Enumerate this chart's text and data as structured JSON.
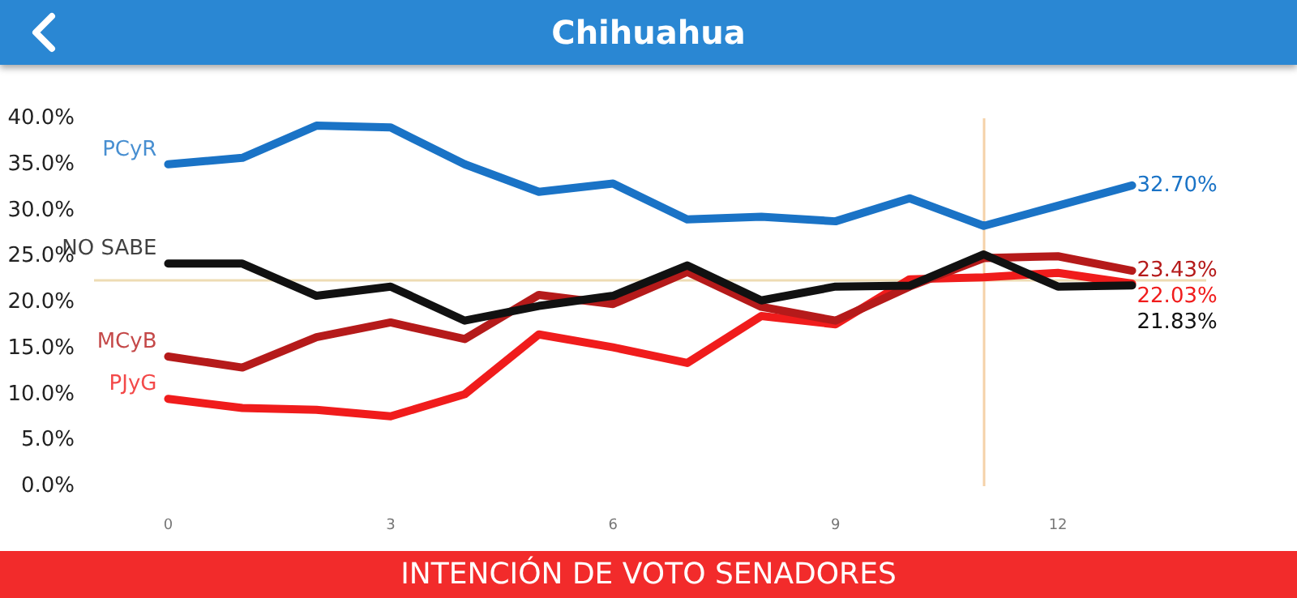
{
  "chart_data": {
    "type": "line",
    "title": "Chihuahua",
    "annotations": [
      "INTENCIÓN DE VOTO SENADORES"
    ],
    "x": [
      0,
      1,
      2,
      3,
      4,
      5,
      6,
      7,
      8,
      9,
      10,
      11,
      12,
      13
    ],
    "series": [
      {
        "name": "PCyR",
        "color": "#1a73c6",
        "values": [
          35.0,
          35.7,
          39.2,
          39.0,
          35.0,
          32.0,
          32.9,
          29.0,
          29.3,
          28.8,
          31.3,
          28.3,
          30.5,
          32.7
        ],
        "value_labels": [
          null,
          null,
          null,
          null,
          null,
          null,
          null,
          null,
          null,
          null,
          null,
          null,
          null,
          "32.70%"
        ]
      },
      {
        "name": "NO SABE",
        "color": "#111111",
        "values": [
          24.2,
          24.2,
          20.7,
          21.7,
          18.0,
          19.6,
          20.7,
          24.0,
          20.2,
          21.7,
          21.8,
          25.2,
          21.7,
          21.83
        ],
        "value_labels": [
          null,
          null,
          null,
          null,
          null,
          null,
          null,
          null,
          null,
          null,
          null,
          null,
          null,
          "21.83%"
        ]
      },
      {
        "name": "MCyB",
        "color": "#b51a1a",
        "values": [
          14.1,
          12.9,
          16.2,
          17.8,
          16.0,
          20.8,
          19.8,
          23.3,
          19.5,
          18.0,
          21.7,
          24.8,
          25.0,
          23.43
        ],
        "value_labels": [
          null,
          null,
          null,
          null,
          null,
          null,
          null,
          null,
          null,
          null,
          null,
          null,
          null,
          "23.43%"
        ]
      },
      {
        "name": "PJyG",
        "color": "#f01c1c",
        "values": [
          9.5,
          8.5,
          8.3,
          7.6,
          10.0,
          16.5,
          15.1,
          13.4,
          18.5,
          17.6,
          22.5,
          22.7,
          23.2,
          22.03
        ],
        "value_labels": [
          null,
          null,
          null,
          null,
          null,
          null,
          null,
          null,
          null,
          null,
          null,
          null,
          null,
          "22.03%"
        ]
      }
    ],
    "xlim": [
      -1,
      14
    ],
    "xticks": [
      0,
      3,
      6,
      9,
      12
    ],
    "ylim": [
      0,
      40
    ],
    "yticks": [
      {
        "value": 0,
        "label": "0.0%"
      },
      {
        "value": 5,
        "label": "5.0%"
      },
      {
        "value": 10,
        "label": "10.0%"
      },
      {
        "value": 15,
        "label": "15.0%"
      },
      {
        "value": 20,
        "label": "20.0%"
      },
      {
        "value": 25,
        "label": "25.0%"
      },
      {
        "value": 30,
        "label": "30.0%"
      },
      {
        "value": 35,
        "label": "35.0%"
      },
      {
        "value": 40,
        "label": "40.0%"
      }
    ],
    "ref_lines": [
      {
        "axis": "y",
        "value": 22.5,
        "color": "#eedcb4"
      },
      {
        "axis": "x",
        "value": 11,
        "color": "#f5d2a8"
      }
    ],
    "grid": false,
    "legend": false,
    "marker": "none",
    "line_style": "solid"
  }
}
